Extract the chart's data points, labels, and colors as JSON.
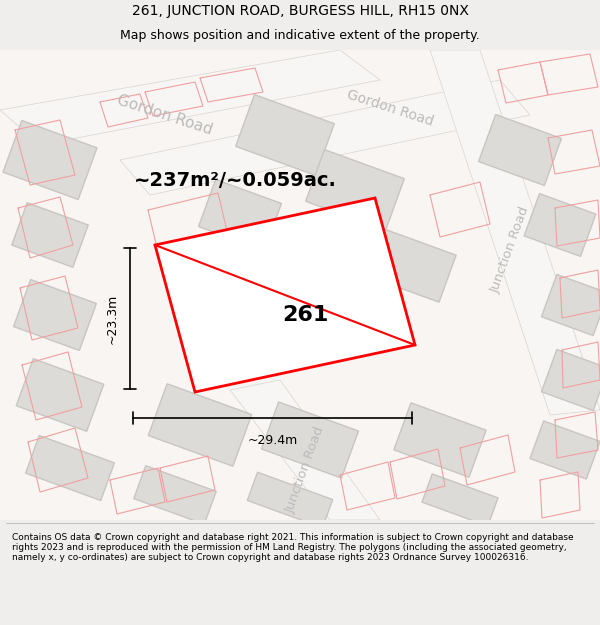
{
  "title_line1": "261, JUNCTION ROAD, BURGESS HILL, RH15 0NX",
  "title_line2": "Map shows position and indicative extent of the property.",
  "footer_text": "Contains OS data © Crown copyright and database right 2021. This information is subject to Crown copyright and database rights 2023 and is reproduced with the permission of HM Land Registry. The polygons (including the associated geometry, namely x, y co-ordinates) are subject to Crown copyright and database rights 2023 Ordnance Survey 100026316.",
  "area_label": "~237m²/~0.059ac.",
  "width_label": "~29.4m",
  "height_label": "~23.3m",
  "plot_number": "261",
  "bg_color": "#f0eeec",
  "title_fontsize": 10,
  "subtitle_fontsize": 9,
  "footer_fontsize": 6.5,
  "road_fill": "#f8f6f4",
  "road_edge": "#d8d4d0",
  "building_fill": "#dddbd8",
  "building_edge": "#c8c5c2",
  "plot_edge": "#ff0000",
  "pink_line": "#f0a0a0",
  "road_text_color": "#bbbbbb",
  "dim_color": "#000000"
}
